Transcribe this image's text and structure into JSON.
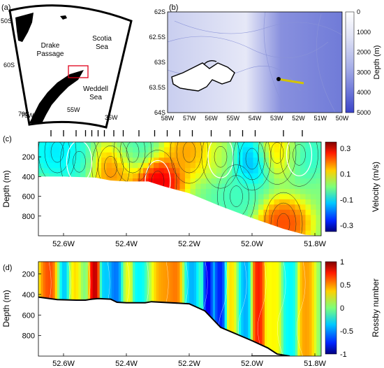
{
  "panels": {
    "a": {
      "label": "(a)",
      "places": [
        "Drake\nPassage",
        "Scotia\nSea",
        "Weddell\nSea"
      ],
      "lat_labels": [
        "50S",
        "60S",
        "70S"
      ],
      "lon_labels": [
        "75W",
        "55W",
        "35W"
      ]
    },
    "b": {
      "label": "(b)",
      "yticks": [
        "62S",
        "62.5S",
        "63S",
        "63.5S",
        "64S"
      ],
      "xticks": [
        "58W",
        "57W",
        "56W",
        "55W",
        "54W",
        "53W",
        "52W",
        "51W",
        "50W"
      ],
      "colorbar": {
        "label": "Depth (m)",
        "ticks": [
          "0",
          "1000",
          "2000",
          "3000",
          "4000",
          "5000"
        ]
      }
    },
    "c": {
      "label": "(c)",
      "ylabel": "Depth (m)",
      "yticks": [
        "200",
        "400",
        "600",
        "800"
      ],
      "colorbar": {
        "label": "Velocity (m/s)",
        "ticks": [
          "0.3",
          "0.1",
          "-0.1",
          "-0.3"
        ]
      }
    },
    "d": {
      "label": "(d)",
      "ylabel": "Depth (m)",
      "yticks": [
        "200",
        "400",
        "600",
        "800"
      ],
      "xticks": [
        "52.6W",
        "52.4W",
        "52.2W",
        "52.0W",
        "51.8W"
      ],
      "colorbar": {
        "label": "Rossby number",
        "ticks": [
          "1",
          "0.5",
          "0",
          "-0.5",
          "-1"
        ]
      }
    }
  },
  "colors": {
    "velocity_high": "#b30000",
    "velocity_low": "#1a1aa0",
    "depth_shallow": "#ffffff",
    "depth_deep": "#3a43c8",
    "map_box": "#e0001a"
  },
  "chart_data": [
    {
      "type": "heatmap",
      "panel": "c",
      "quantity": "velocity",
      "units": "m/s",
      "xlim_lon_deg_W": [
        52.68,
        51.78
      ],
      "ylim_depth_m": [
        1000,
        50
      ],
      "clim": [
        -0.35,
        0.35
      ],
      "station_lons": [
        52.64,
        52.6,
        52.56,
        52.53,
        52.51,
        52.49,
        52.47,
        52.44,
        52.41,
        52.36,
        52.31,
        52.27,
        52.23,
        52.19,
        52.13,
        52.07,
        52.03,
        51.99,
        51.9,
        51.84
      ],
      "bottom_profile": [
        {
          "lon": 52.68,
          "depth": 400
        },
        {
          "lon": 52.6,
          "depth": 400
        },
        {
          "lon": 52.5,
          "depth": 410
        },
        {
          "lon": 52.45,
          "depth": 440
        },
        {
          "lon": 52.4,
          "depth": 450
        },
        {
          "lon": 52.33,
          "depth": 450
        },
        {
          "lon": 52.28,
          "depth": 500
        },
        {
          "lon": 52.2,
          "depth": 570
        },
        {
          "lon": 52.1,
          "depth": 700
        },
        {
          "lon": 52.0,
          "depth": 820
        },
        {
          "lon": 51.9,
          "depth": 930
        },
        {
          "lon": 51.83,
          "depth": 990
        },
        {
          "lon": 51.78,
          "depth": 1000
        }
      ],
      "features": [
        {
          "lon": 52.3,
          "depth": 450,
          "value": 0.33
        },
        {
          "lon": 52.45,
          "depth": 300,
          "value": 0.22
        },
        {
          "lon": 52.62,
          "depth": 150,
          "value": -0.12
        },
        {
          "lon": 52.55,
          "depth": 250,
          "value": -0.08
        },
        {
          "lon": 52.38,
          "depth": 150,
          "value": -0.05
        },
        {
          "lon": 52.2,
          "depth": 150,
          "value": 0.18
        },
        {
          "lon": 52.1,
          "depth": 200,
          "value": 0.05
        },
        {
          "lon": 52.0,
          "depth": 220,
          "value": -0.2
        },
        {
          "lon": 51.92,
          "depth": 160,
          "value": 0.2
        },
        {
          "lon": 51.85,
          "depth": 180,
          "value": -0.08
        },
        {
          "lon": 51.9,
          "depth": 880,
          "value": 0.25
        },
        {
          "lon": 52.05,
          "depth": 600,
          "value": -0.05
        }
      ]
    },
    {
      "type": "heatmap",
      "panel": "d",
      "quantity": "Rossby number",
      "xlim_lon_deg_W": [
        52.68,
        51.78
      ],
      "ylim_depth_m": [
        1000,
        80
      ],
      "clim": [
        -1,
        1
      ],
      "bottom_profile": [
        {
          "lon": 52.68,
          "depth": 425
        },
        {
          "lon": 52.62,
          "depth": 450
        },
        {
          "lon": 52.56,
          "depth": 455
        },
        {
          "lon": 52.53,
          "depth": 455
        },
        {
          "lon": 52.51,
          "depth": 445
        },
        {
          "lon": 52.49,
          "depth": 440
        },
        {
          "lon": 52.45,
          "depth": 445
        },
        {
          "lon": 52.43,
          "depth": 475
        },
        {
          "lon": 52.4,
          "depth": 480
        },
        {
          "lon": 52.34,
          "depth": 480
        },
        {
          "lon": 52.32,
          "depth": 470
        },
        {
          "lon": 52.2,
          "depth": 490
        },
        {
          "lon": 52.15,
          "depth": 560
        },
        {
          "lon": 52.1,
          "depth": 720
        },
        {
          "lon": 52.0,
          "depth": 850
        },
        {
          "lon": 51.95,
          "depth": 920
        },
        {
          "lon": 51.92,
          "depth": 980
        },
        {
          "lon": 51.88,
          "depth": 1000
        }
      ],
      "bands": [
        {
          "lon": 52.64,
          "width": 0.025,
          "value": 0.7
        },
        {
          "lon": 52.6,
          "width": 0.02,
          "value": -0.5
        },
        {
          "lon": 52.57,
          "width": 0.015,
          "value": 0.4
        },
        {
          "lon": 52.5,
          "width": 0.012,
          "value": 1.0
        },
        {
          "lon": 52.47,
          "width": 0.012,
          "value": -0.4
        },
        {
          "lon": 52.43,
          "width": 0.02,
          "value": -0.6
        },
        {
          "lon": 52.4,
          "width": 0.015,
          "value": 0.3
        },
        {
          "lon": 52.36,
          "width": 0.015,
          "value": -0.3
        },
        {
          "lon": 52.28,
          "width": 0.025,
          "value": 0.5
        },
        {
          "lon": 52.24,
          "width": 0.025,
          "value": 0.6
        },
        {
          "lon": 52.2,
          "width": 0.02,
          "value": -0.5
        },
        {
          "lon": 52.14,
          "width": 0.01,
          "value": -0.9
        },
        {
          "lon": 52.1,
          "width": 0.015,
          "value": -0.8
        },
        {
          "lon": 52.06,
          "width": 0.02,
          "value": 0.4
        },
        {
          "lon": 52.03,
          "width": 0.02,
          "value": -0.5
        },
        {
          "lon": 51.98,
          "width": 0.015,
          "value": 0.8
        },
        {
          "lon": 51.93,
          "width": 0.02,
          "value": 0.3
        },
        {
          "lon": 51.88,
          "width": 0.02,
          "value": -0.3
        },
        {
          "lon": 51.83,
          "width": 0.02,
          "value": 0.5
        }
      ]
    }
  ]
}
